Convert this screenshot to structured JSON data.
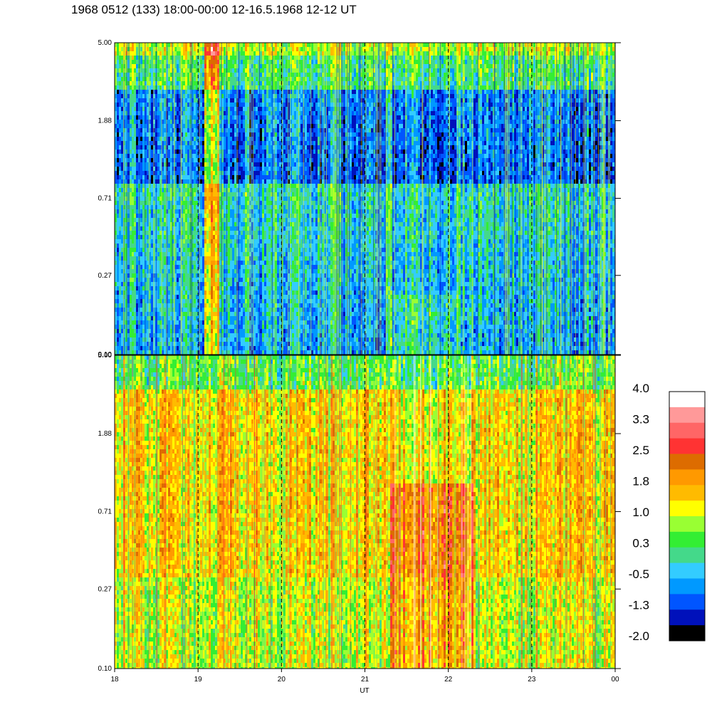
{
  "title": "1968 0512 (133) 18:00-00:00 12-16.5.1968  12-12 UT",
  "chart_data": [
    {
      "type": "heatmap",
      "panel": "upper",
      "x": {
        "label": "",
        "ticks": [
          "18",
          "19",
          "20",
          "21",
          "22",
          "23",
          "00"
        ],
        "range_hours": [
          18,
          24
        ],
        "vertical_dashed_grid_at": [
          19,
          20,
          21,
          22,
          23
        ]
      },
      "y": {
        "label": "",
        "scale": "log",
        "ticks": [
          "0.10",
          "0.27",
          "0.71",
          "1.88",
          "5.00"
        ],
        "range": [
          0.1,
          5.0
        ]
      },
      "dominant_levels": "mostly -1.3 to 0.3; yellow/orange burst near 19:10; blue patches at 1-2 range",
      "colorscale_ref": "colorbar"
    },
    {
      "type": "heatmap",
      "panel": "lower",
      "x": {
        "label": "UT",
        "ticks": [
          "18",
          "19",
          "20",
          "21",
          "22",
          "23",
          "00"
        ],
        "range_hours": [
          18,
          24
        ],
        "vertical_dashed_grid_at": [
          19,
          20,
          21,
          22,
          23
        ]
      },
      "y": {
        "label": "",
        "scale": "log",
        "ticks": [
          "0.10",
          "0.27",
          "0.71",
          "1.88",
          "5.00"
        ],
        "range": [
          0.1,
          5.0
        ]
      },
      "dominant_levels": "mostly 1.0 to 1.8; stronger 2.0-2.5 region 21:20-22:20 below 1.0",
      "colorscale_ref": "colorbar"
    }
  ],
  "colorbar": {
    "labels": [
      "4.0",
      "3.3",
      "2.5",
      "1.8",
      "1.0",
      "0.3",
      "-0.5",
      "-1.3",
      "-2.0"
    ],
    "range": [
      -2.0,
      4.0
    ],
    "colors": [
      "#ffffff",
      "#ff9999",
      "#ff6666",
      "#ff3333",
      "#dd6c00",
      "#ff9900",
      "#ffbb00",
      "#ffff00",
      "#99ff33",
      "#33ee33",
      "#44d98a",
      "#33ccff",
      "#0099ff",
      "#0055ff",
      "#0011bb",
      "#000000"
    ]
  }
}
